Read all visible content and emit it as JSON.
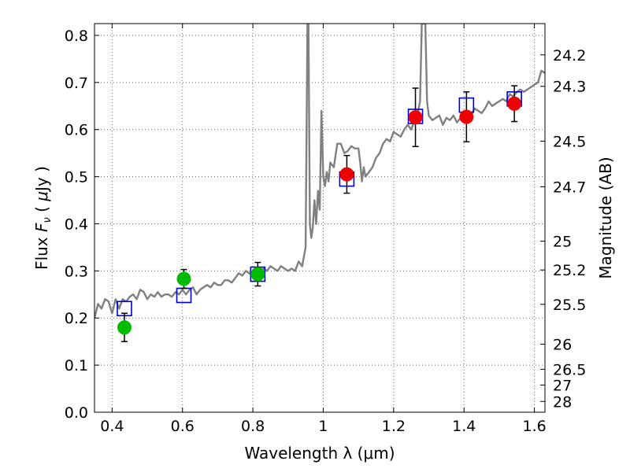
{
  "chart_data": {
    "type": "scatter",
    "title": "",
    "xlabel": "Wavelength  λ (μm)",
    "ylabel": "Flux  F_ν  ( μJy )",
    "ylabel_parts": {
      "pre": "Flux  ",
      "F": "F",
      "nu": "ν",
      "open": "  ( ",
      "mu": "μ",
      "unit": "Jy",
      "close": " )"
    },
    "y2label": "Magnitude (AB)",
    "xlim": [
      0.35,
      1.63
    ],
    "ylim": [
      0.0,
      0.825
    ],
    "grid": true,
    "x_ticks": [
      0.4,
      0.6,
      0.8,
      1.0,
      1.2,
      1.4,
      1.6
    ],
    "x_tick_labels": [
      "0.4",
      "0.6",
      "0.8",
      "1",
      "1.2",
      "1.4",
      "1.6"
    ],
    "y_ticks": [
      0.0,
      0.1,
      0.2,
      0.3,
      0.4,
      0.5,
      0.6,
      0.7,
      0.8
    ],
    "y_tick_labels": [
      "0.0",
      "0.1",
      "0.2",
      "0.3",
      "0.4",
      "0.5",
      "0.6",
      "0.7",
      "0.8"
    ],
    "magnitude_ticks": [
      "24.2",
      "24.3",
      "24.5",
      "24.7",
      "25",
      "25.2",
      "25.5",
      "26",
      "26.5",
      "27",
      "28"
    ],
    "colors": {
      "spectrum": "#808080",
      "model": "#0000cc",
      "green": "#00bb00",
      "red": "#ee0000",
      "errorbar": "#000000"
    },
    "series": [
      {
        "kind": "line",
        "points": [
          [
            0.35,
            0.2
          ],
          [
            0.36,
            0.23
          ],
          [
            0.37,
            0.22
          ],
          [
            0.38,
            0.24
          ],
          [
            0.39,
            0.235
          ],
          [
            0.4,
            0.21
          ],
          [
            0.41,
            0.24
          ],
          [
            0.42,
            0.22
          ],
          [
            0.43,
            0.24
          ],
          [
            0.44,
            0.235
          ],
          [
            0.45,
            0.245
          ],
          [
            0.46,
            0.25
          ],
          [
            0.47,
            0.24
          ],
          [
            0.48,
            0.26
          ],
          [
            0.49,
            0.255
          ],
          [
            0.5,
            0.24
          ],
          [
            0.51,
            0.25
          ],
          [
            0.52,
            0.245
          ],
          [
            0.53,
            0.255
          ],
          [
            0.54,
            0.245
          ],
          [
            0.55,
            0.25
          ],
          [
            0.56,
            0.25
          ],
          [
            0.57,
            0.245
          ],
          [
            0.58,
            0.255
          ],
          [
            0.59,
            0.25
          ],
          [
            0.6,
            0.26
          ],
          [
            0.61,
            0.25
          ],
          [
            0.62,
            0.26
          ],
          [
            0.63,
            0.265
          ],
          [
            0.64,
            0.25
          ],
          [
            0.65,
            0.26
          ],
          [
            0.66,
            0.265
          ],
          [
            0.67,
            0.27
          ],
          [
            0.68,
            0.265
          ],
          [
            0.69,
            0.275
          ],
          [
            0.7,
            0.27
          ],
          [
            0.71,
            0.27
          ],
          [
            0.72,
            0.28
          ],
          [
            0.73,
            0.28
          ],
          [
            0.74,
            0.275
          ],
          [
            0.75,
            0.285
          ],
          [
            0.76,
            0.295
          ],
          [
            0.77,
            0.29
          ],
          [
            0.78,
            0.3
          ],
          [
            0.79,
            0.295
          ],
          [
            0.8,
            0.29
          ],
          [
            0.81,
            0.295
          ],
          [
            0.82,
            0.3
          ],
          [
            0.83,
            0.305
          ],
          [
            0.84,
            0.3
          ],
          [
            0.85,
            0.31
          ],
          [
            0.86,
            0.305
          ],
          [
            0.87,
            0.3
          ],
          [
            0.88,
            0.31
          ],
          [
            0.89,
            0.305
          ],
          [
            0.9,
            0.3
          ],
          [
            0.91,
            0.305
          ],
          [
            0.92,
            0.3
          ],
          [
            0.93,
            0.32
          ],
          [
            0.94,
            0.31
          ],
          [
            0.95,
            0.35
          ],
          [
            0.955,
            0.825
          ],
          [
            0.958,
            0.825
          ],
          [
            0.962,
            0.4
          ],
          [
            0.966,
            0.37
          ],
          [
            0.97,
            0.39
          ],
          [
            0.975,
            0.45
          ],
          [
            0.98,
            0.4
          ],
          [
            0.985,
            0.47
          ],
          [
            0.99,
            0.43
          ],
          [
            0.995,
            0.64
          ],
          [
            1.0,
            0.5
          ],
          [
            1.005,
            0.48
          ],
          [
            1.01,
            0.51
          ],
          [
            1.015,
            0.49
          ],
          [
            1.02,
            0.53
          ],
          [
            1.03,
            0.52
          ],
          [
            1.04,
            0.57
          ],
          [
            1.05,
            0.57
          ],
          [
            1.06,
            0.55
          ],
          [
            1.07,
            0.555
          ],
          [
            1.08,
            0.565
          ],
          [
            1.09,
            0.56
          ],
          [
            1.1,
            0.56
          ],
          [
            1.105,
            0.53
          ],
          [
            1.11,
            0.49
          ],
          [
            1.115,
            0.52
          ],
          [
            1.12,
            0.5
          ],
          [
            1.13,
            0.51
          ],
          [
            1.14,
            0.52
          ],
          [
            1.15,
            0.54
          ],
          [
            1.16,
            0.55
          ],
          [
            1.17,
            0.57
          ],
          [
            1.18,
            0.58
          ],
          [
            1.19,
            0.575
          ],
          [
            1.2,
            0.595
          ],
          [
            1.21,
            0.59
          ],
          [
            1.22,
            0.585
          ],
          [
            1.23,
            0.6
          ],
          [
            1.24,
            0.61
          ],
          [
            1.25,
            0.6
          ],
          [
            1.26,
            0.62
          ],
          [
            1.27,
            0.64
          ],
          [
            1.275,
            0.66
          ],
          [
            1.28,
            0.825
          ],
          [
            1.29,
            0.825
          ],
          [
            1.295,
            0.66
          ],
          [
            1.3,
            0.63
          ],
          [
            1.31,
            0.62
          ],
          [
            1.32,
            0.625
          ],
          [
            1.33,
            0.63
          ],
          [
            1.34,
            0.61
          ],
          [
            1.35,
            0.625
          ],
          [
            1.36,
            0.62
          ],
          [
            1.37,
            0.63
          ],
          [
            1.38,
            0.615
          ],
          [
            1.39,
            0.625
          ],
          [
            1.4,
            0.63
          ],
          [
            1.41,
            0.625
          ],
          [
            1.42,
            0.63
          ],
          [
            1.43,
            0.645
          ],
          [
            1.44,
            0.64
          ],
          [
            1.45,
            0.635
          ],
          [
            1.46,
            0.645
          ],
          [
            1.47,
            0.66
          ],
          [
            1.48,
            0.65
          ],
          [
            1.49,
            0.655
          ],
          [
            1.5,
            0.66
          ],
          [
            1.51,
            0.665
          ],
          [
            1.52,
            0.66
          ],
          [
            1.53,
            0.675
          ],
          [
            1.54,
            0.67
          ],
          [
            1.55,
            0.68
          ],
          [
            1.56,
            0.685
          ],
          [
            1.57,
            0.68
          ],
          [
            1.58,
            0.685
          ],
          [
            1.59,
            0.69
          ],
          [
            1.6,
            0.695
          ],
          [
            1.61,
            0.7
          ],
          [
            1.62,
            0.725
          ],
          [
            1.63,
            0.72
          ]
        ]
      },
      {
        "kind": "model-squares",
        "points": [
          [
            0.435,
            0.22
          ],
          [
            0.604,
            0.248
          ],
          [
            0.814,
            0.293
          ],
          [
            1.067,
            0.495
          ],
          [
            1.262,
            0.628
          ],
          [
            1.407,
            0.652
          ],
          [
            1.543,
            0.665
          ]
        ]
      },
      {
        "kind": "green-points",
        "points": [
          [
            0.435,
            0.18,
            0.03
          ],
          [
            0.604,
            0.283,
            0.02
          ],
          [
            0.814,
            0.293,
            0.025
          ]
        ]
      },
      {
        "kind": "red-points",
        "points": [
          [
            1.067,
            0.505,
            0.04
          ],
          [
            1.262,
            0.626,
            0.062
          ],
          [
            1.407,
            0.627,
            0.053
          ],
          [
            1.543,
            0.655,
            0.038
          ]
        ]
      }
    ]
  }
}
